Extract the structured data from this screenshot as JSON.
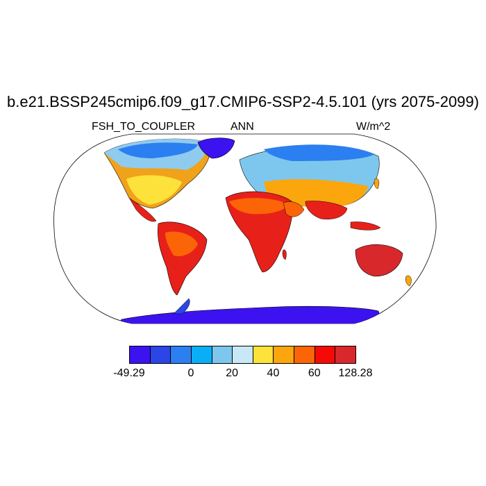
{
  "title": "b.e21.BSSP245cmip6.f09_g17.CMIP6-SSP2-4.5.101 (yrs 2075-2099)",
  "subtitle_left": "FSH_TO_COUPLER",
  "subtitle_center": "ANN",
  "subtitle_right": "W/m^2",
  "colorbar": {
    "colors": [
      "#3d12f0",
      "#2c45e6",
      "#2c7ff0",
      "#0aaef7",
      "#7dc7ee",
      "#c8e8f8",
      "#fce23a",
      "#fba60c",
      "#fb6407",
      "#f60a06",
      "#d8282b"
    ],
    "labels": [
      {
        "text": "-49.29",
        "edge": 0
      },
      {
        "text": "0",
        "edge": 3
      },
      {
        "text": "20",
        "edge": 5
      },
      {
        "text": "40",
        "edge": 7
      },
      {
        "text": "60",
        "edge": 9
      },
      {
        "text": "128.28",
        "edge": 11
      }
    ]
  },
  "map": {
    "projection": "robinson",
    "land_color": "#ffffff",
    "coastline_color": "#000000"
  }
}
